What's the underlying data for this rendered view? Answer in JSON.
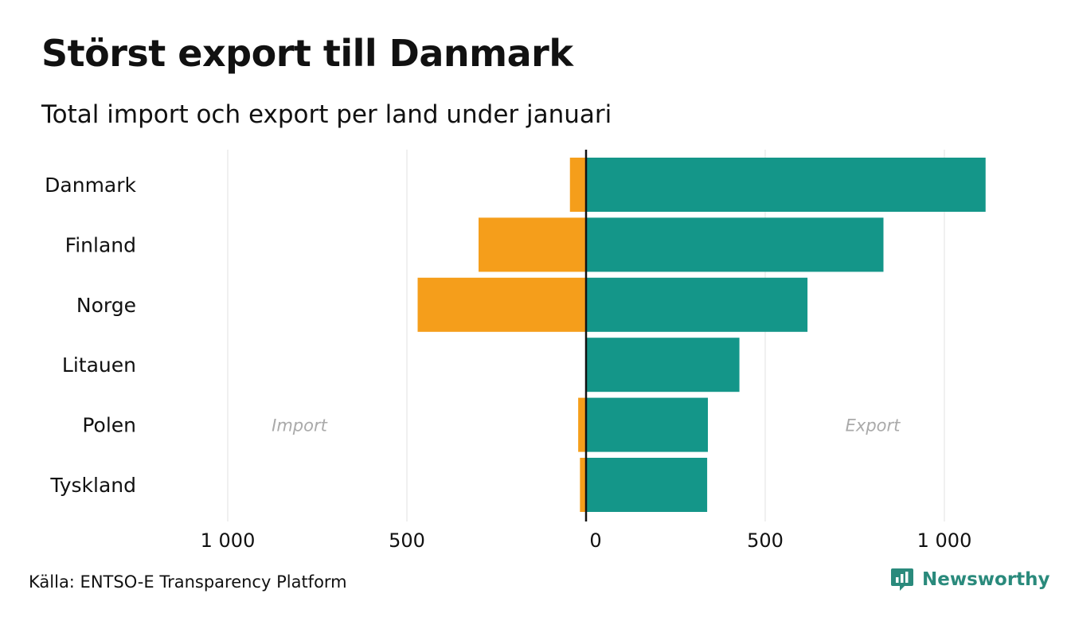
{
  "title": "Störst export till Danmark",
  "subtitle": "Total import och export per land under januari",
  "source": "Källa: ENTSO-E Transparency Platform",
  "brand": {
    "name": "Newsworthy",
    "icon": "newsworthy-logo-icon",
    "color": "#2a8a7c"
  },
  "colors": {
    "import": "#f59e1b",
    "export": "#149689",
    "grid": "#e6e6e6",
    "zero_line": "#111111",
    "annotation": "#aaaaaa"
  },
  "chart_data": {
    "type": "bar",
    "orientation": "horizontal-diverging",
    "categories": [
      "Danmark",
      "Finland",
      "Norge",
      "Litauen",
      "Polen",
      "Tyskland"
    ],
    "series": [
      {
        "name": "Import",
        "values": [
          45,
          300,
          470,
          0,
          22,
          17
        ]
      },
      {
        "name": "Export",
        "values": [
          1115,
          830,
          618,
          428,
          340,
          338
        ]
      }
    ],
    "xlim": [
      -1000,
      1000
    ],
    "x_ticks": [
      -1000,
      -500,
      0,
      500,
      1000
    ],
    "x_tick_labels": [
      "1 000",
      "500",
      "0",
      "500",
      "1 000"
    ],
    "annotations": [
      {
        "text": "Import",
        "x": -800,
        "category": "Polen"
      },
      {
        "text": "Export",
        "x": 800,
        "category": "Polen"
      }
    ],
    "grid": true
  }
}
